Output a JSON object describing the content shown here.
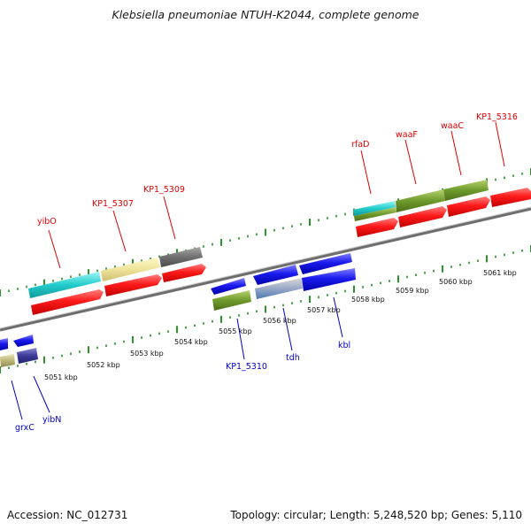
{
  "header": {
    "title": "Klebsiella pneumoniae NTUH-K2044, complete genome"
  },
  "footer": {
    "accession": "Accession: NC_012731",
    "summary": "Topology: circular; Length: 5,248,520 bp; Genes: 5,110"
  },
  "colors": {
    "forward_cds": "#ff1a1a",
    "reverse_cds": "#1a1aee",
    "backbone": "#8a8a8a",
    "tick": "#118a11",
    "label_forward": "#e00000",
    "label_reverse": "#0000cc"
  },
  "scale_labels": [
    "5051 kbp",
    "5052 kbp",
    "5053 kbp",
    "5054 kbp",
    "5055 kbp",
    "5056 kbp",
    "5057 kbp",
    "5058 kbp",
    "5059 kbp",
    "5060 kbp",
    "5061 kbp"
  ],
  "gene_labels_forward": [
    "yibO",
    "KP1_5307",
    "KP1_5309",
    "rfaD",
    "waaF",
    "waaC",
    "KP1_5316"
  ],
  "gene_labels_reverse": [
    "grxC",
    "yibN",
    "KP1_5310",
    "tdh",
    "kbl"
  ]
}
